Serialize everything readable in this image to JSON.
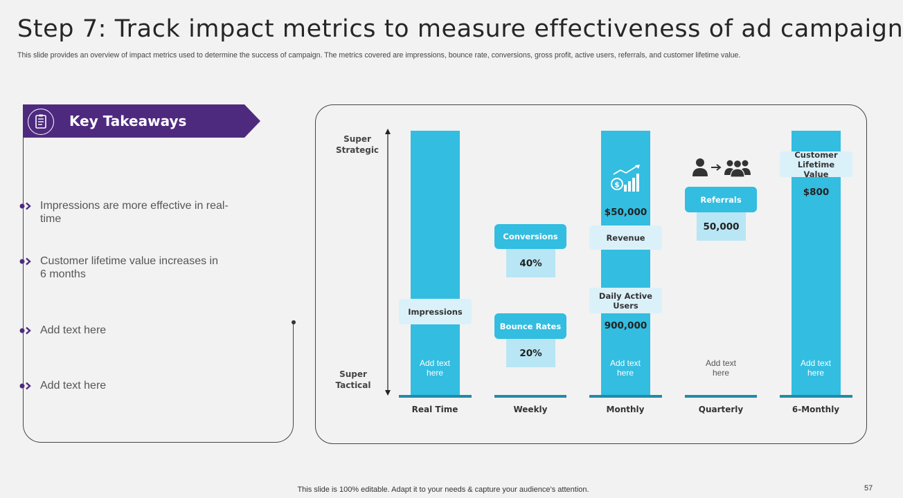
{
  "header": {
    "title": "Step 7: Track impact metrics to measure effectiveness of ad campaign",
    "subtitle": "This slide provides an overview of impact metrics used to determine the success of campaign. The metrics covered are impressions, bounce rate, conversions, gross profit, active users, referrals, and customer lifetime value."
  },
  "takeaways": {
    "heading": "Key Takeaways",
    "icon": "checklist-icon",
    "items": [
      "Impressions are more effective in real-time",
      "Customer lifetime value increases in 6 months",
      "Add text here",
      "Add text here"
    ]
  },
  "diagram": {
    "axis": {
      "top": "Super Strategic",
      "bottom": "Super Tactical"
    },
    "categories": [
      "Real Time",
      "Weekly",
      "Monthly",
      "Quarterly",
      "6-Monthly"
    ],
    "placeholder": "Add text here",
    "metrics": {
      "impressions": "Impressions",
      "conversions": "Conversions",
      "conversions_value": "40%",
      "bounce": "Bounce Rates",
      "bounce_value": "20%",
      "revenue": "Revenue",
      "revenue_value": "$50,000",
      "dau": "Daily Active Users",
      "dau_value": "900,000",
      "referrals": "Referrals",
      "referrals_value": "50,000",
      "clv": "Customer Lifetime Value",
      "clv_value": "$800"
    },
    "colors": {
      "bar": "#33bde0",
      "baseline": "#1e8ca8",
      "banner": "#4e2a7f",
      "light_box": "#dbf1f9",
      "value_box": "#b8e6f4"
    }
  },
  "footer": {
    "note": "This slide is 100% editable. Adapt it to your needs & capture your audience’s attention.",
    "page": "57"
  }
}
